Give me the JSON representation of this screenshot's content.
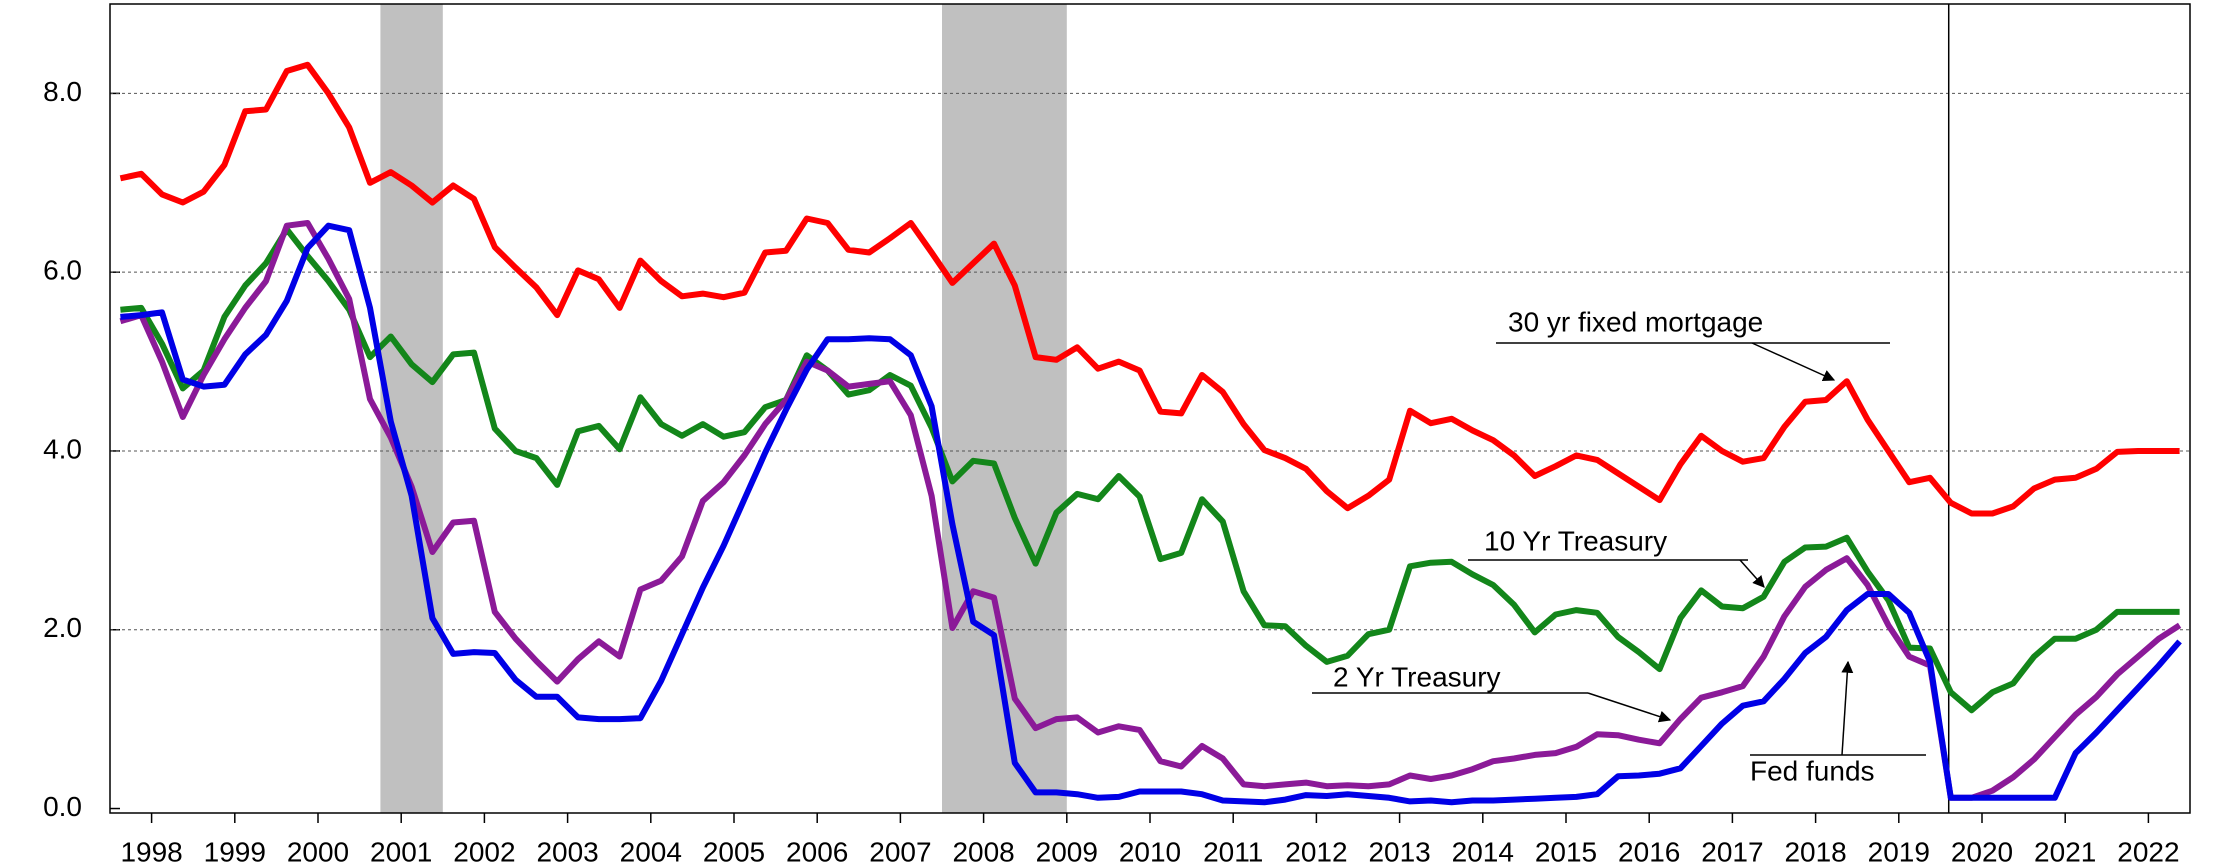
{
  "chart_data": {
    "type": "line",
    "x": [
      1998.125,
      1998.375,
      1998.625,
      1998.875,
      1999.125,
      1999.375,
      1999.625,
      1999.875,
      2000.125,
      2000.375,
      2000.625,
      2000.875,
      2001.125,
      2001.375,
      2001.625,
      2001.875,
      2002.125,
      2002.375,
      2002.625,
      2002.875,
      2003.125,
      2003.375,
      2003.625,
      2003.875,
      2004.125,
      2004.375,
      2004.625,
      2004.875,
      2005.125,
      2005.375,
      2005.625,
      2005.875,
      2006.125,
      2006.375,
      2006.625,
      2006.875,
      2007.125,
      2007.375,
      2007.625,
      2007.875,
      2008.125,
      2008.375,
      2008.625,
      2008.875,
      2009.125,
      2009.375,
      2009.625,
      2009.875,
      2010.125,
      2010.375,
      2010.625,
      2010.875,
      2011.125,
      2011.375,
      2011.625,
      2011.875,
      2012.125,
      2012.375,
      2012.625,
      2012.875,
      2013.125,
      2013.375,
      2013.625,
      2013.875,
      2014.125,
      2014.375,
      2014.625,
      2014.875,
      2015.125,
      2015.375,
      2015.625,
      2015.875,
      2016.125,
      2016.375,
      2016.625,
      2016.875,
      2017.125,
      2017.375,
      2017.625,
      2017.875,
      2018.125,
      2018.375,
      2018.625,
      2018.875,
      2019.125,
      2019.375,
      2019.625,
      2019.875,
      2020.125,
      2020.375,
      2020.625,
      2020.875,
      2021.125,
      2021.375,
      2021.625,
      2021.875,
      2022.125,
      2022.375,
      2022.625,
      2022.875
    ],
    "series": [
      {
        "name": "30 yr fixed mortgage",
        "color": "#ff0000",
        "values": [
          7.05,
          7.1,
          6.87,
          6.78,
          6.9,
          7.2,
          7.8,
          7.82,
          8.25,
          8.32,
          8.0,
          7.62,
          7.0,
          7.12,
          6.97,
          6.78,
          6.97,
          6.82,
          6.28,
          6.05,
          5.83,
          5.52,
          6.02,
          5.92,
          5.6,
          6.13,
          5.9,
          5.73,
          5.76,
          5.72,
          5.77,
          6.22,
          6.24,
          6.6,
          6.55,
          6.25,
          6.22,
          6.38,
          6.55,
          6.22,
          5.88,
          6.1,
          6.32,
          5.85,
          5.05,
          5.02,
          5.16,
          4.92,
          5.0,
          4.9,
          4.44,
          4.42,
          4.85,
          4.66,
          4.3,
          4.01,
          3.92,
          3.8,
          3.55,
          3.36,
          3.5,
          3.68,
          4.45,
          4.31,
          4.36,
          4.23,
          4.12,
          3.95,
          3.72,
          3.83,
          3.95,
          3.9,
          3.75,
          3.6,
          3.45,
          3.85,
          4.17,
          4.0,
          3.88,
          3.92,
          4.27,
          4.55,
          4.57,
          4.78,
          4.35,
          4.0,
          3.65,
          3.7,
          3.42,
          3.3,
          3.3,
          3.38,
          3.58,
          3.68,
          3.7,
          3.8,
          3.99,
          4.0,
          4.0,
          4.0
        ]
      },
      {
        "name": "10 Yr Treasury",
        "color": "#13861a",
        "values": [
          5.58,
          5.6,
          5.2,
          4.7,
          4.9,
          5.5,
          5.85,
          6.1,
          6.48,
          6.18,
          5.9,
          5.58,
          5.05,
          5.28,
          4.97,
          4.77,
          5.08,
          5.1,
          4.25,
          4.0,
          3.92,
          3.62,
          4.22,
          4.28,
          4.02,
          4.6,
          4.3,
          4.17,
          4.3,
          4.16,
          4.21,
          4.49,
          4.57,
          5.07,
          4.9,
          4.63,
          4.68,
          4.85,
          4.73,
          4.26,
          3.66,
          3.89,
          3.86,
          3.25,
          2.74,
          3.31,
          3.52,
          3.46,
          3.72,
          3.49,
          2.79,
          2.86,
          3.46,
          3.21,
          2.43,
          2.05,
          2.04,
          1.82,
          1.64,
          1.71,
          1.95,
          2.0,
          2.71,
          2.75,
          2.76,
          2.62,
          2.5,
          2.28,
          1.97,
          2.17,
          2.22,
          2.19,
          1.92,
          1.75,
          1.56,
          2.13,
          2.44,
          2.26,
          2.24,
          2.37,
          2.76,
          2.92,
          2.93,
          3.03,
          2.65,
          2.33,
          1.8,
          1.79,
          1.3,
          1.1,
          1.3,
          1.4,
          1.7,
          1.9,
          1.9,
          2.0,
          2.2,
          2.2,
          2.2,
          2.2
        ]
      },
      {
        "name": "2 Yr Treasury",
        "color": "#8b1a98",
        "values": [
          5.45,
          5.52,
          5.0,
          4.38,
          4.85,
          5.25,
          5.6,
          5.9,
          6.52,
          6.55,
          6.15,
          5.7,
          4.58,
          4.15,
          3.6,
          2.87,
          3.2,
          3.22,
          2.2,
          1.9,
          1.65,
          1.42,
          1.67,
          1.87,
          1.7,
          2.45,
          2.55,
          2.82,
          3.44,
          3.65,
          3.95,
          4.3,
          4.57,
          5.0,
          4.9,
          4.72,
          4.75,
          4.78,
          4.4,
          3.5,
          2.02,
          2.43,
          2.36,
          1.23,
          0.9,
          1.0,
          1.02,
          0.85,
          0.92,
          0.88,
          0.53,
          0.47,
          0.7,
          0.56,
          0.27,
          0.25,
          0.27,
          0.29,
          0.25,
          0.26,
          0.25,
          0.27,
          0.37,
          0.33,
          0.37,
          0.44,
          0.53,
          0.56,
          0.6,
          0.62,
          0.69,
          0.83,
          0.82,
          0.77,
          0.73,
          1.0,
          1.24,
          1.3,
          1.37,
          1.7,
          2.15,
          2.48,
          2.67,
          2.8,
          2.5,
          2.05,
          1.7,
          1.6,
          0.12,
          0.12,
          0.2,
          0.35,
          0.55,
          0.8,
          1.05,
          1.25,
          1.5,
          1.7,
          1.9,
          2.05
        ]
      },
      {
        "name": "Fed funds",
        "color": "#0000e6",
        "values": [
          5.5,
          5.52,
          5.55,
          4.8,
          4.72,
          4.74,
          5.08,
          5.3,
          5.68,
          6.27,
          6.52,
          6.47,
          5.6,
          4.33,
          3.5,
          2.13,
          1.73,
          1.75,
          1.74,
          1.44,
          1.25,
          1.25,
          1.02,
          1.0,
          1.0,
          1.01,
          1.43,
          1.95,
          2.47,
          2.94,
          3.46,
          3.98,
          4.46,
          4.91,
          5.25,
          5.25,
          5.26,
          5.25,
          5.07,
          4.5,
          3.18,
          2.09,
          1.94,
          0.51,
          0.18,
          0.18,
          0.16,
          0.12,
          0.13,
          0.19,
          0.19,
          0.19,
          0.16,
          0.09,
          0.08,
          0.07,
          0.1,
          0.15,
          0.14,
          0.16,
          0.14,
          0.12,
          0.08,
          0.09,
          0.07,
          0.09,
          0.09,
          0.1,
          0.11,
          0.12,
          0.13,
          0.16,
          0.36,
          0.37,
          0.39,
          0.45,
          0.7,
          0.95,
          1.15,
          1.2,
          1.45,
          1.74,
          1.92,
          2.22,
          2.4,
          2.4,
          2.19,
          1.64,
          0.12,
          0.12,
          0.12,
          0.12,
          0.12,
          0.12,
          0.62,
          0.85,
          1.1,
          1.35,
          1.6,
          1.87
        ]
      }
    ],
    "xlim": [
      1998,
      2023
    ],
    "xticks": [
      {
        "value": 1998.5,
        "label": "1998"
      },
      {
        "value": 1999.5,
        "label": "1999"
      },
      {
        "value": 2000.5,
        "label": "2000"
      },
      {
        "value": 2001.5,
        "label": "2001"
      },
      {
        "value": 2002.5,
        "label": "2002"
      },
      {
        "value": 2003.5,
        "label": "2003"
      },
      {
        "value": 2004.5,
        "label": "2004"
      },
      {
        "value": 2005.5,
        "label": "2005"
      },
      {
        "value": 2006.5,
        "label": "2006"
      },
      {
        "value": 2007.5,
        "label": "2007"
      },
      {
        "value": 2008.5,
        "label": "2008"
      },
      {
        "value": 2009.5,
        "label": "2009"
      },
      {
        "value": 2010.5,
        "label": "2010"
      },
      {
        "value": 2011.5,
        "label": "2011"
      },
      {
        "value": 2012.5,
        "label": "2012"
      },
      {
        "value": 2013.5,
        "label": "2013"
      },
      {
        "value": 2014.5,
        "label": "2014"
      },
      {
        "value": 2015.5,
        "label": "2015"
      },
      {
        "value": 2016.5,
        "label": "2016"
      },
      {
        "value": 2017.5,
        "label": "2017"
      },
      {
        "value": 2018.5,
        "label": "2018"
      },
      {
        "value": 2019.5,
        "label": "2019"
      },
      {
        "value": 2020.5,
        "label": "2020"
      },
      {
        "value": 2021.5,
        "label": "2021"
      },
      {
        "value": 2022.5,
        "label": "2022"
      }
    ],
    "ylim": [
      -0.05,
      9
    ],
    "yticks": [
      {
        "value": 0,
        "label": "0.0"
      },
      {
        "value": 2,
        "label": "2.0"
      },
      {
        "value": 4,
        "label": "4.0"
      },
      {
        "value": 6,
        "label": "6.0"
      },
      {
        "value": 8,
        "label": "8.0"
      }
    ],
    "grid": true,
    "shaded_regions": [
      [
        2001.25,
        2002.0
      ],
      [
        2008.0,
        2009.5
      ]
    ],
    "vline": 2020.1
  }
}
